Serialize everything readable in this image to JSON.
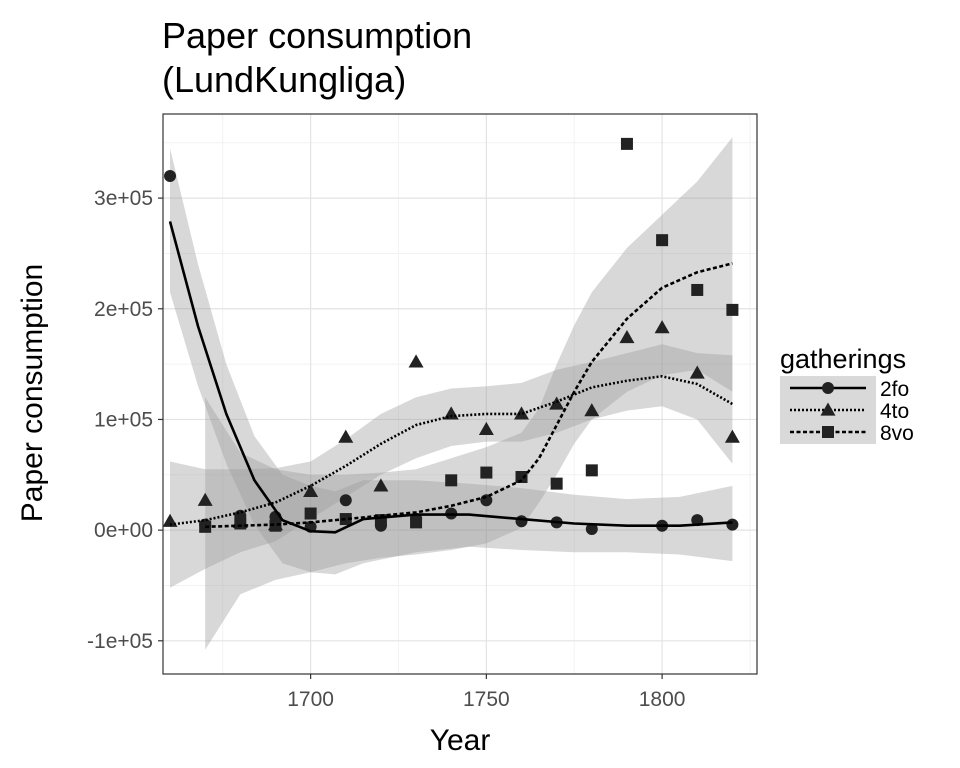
{
  "chart_data": {
    "type": "scatter",
    "title": [
      "Paper consumption",
      "(LundKungliga)"
    ],
    "xlabel": "Year",
    "ylabel": "Paper consumption",
    "xlim": [
      1658,
      1827
    ],
    "ylim": [
      -130000,
      376000
    ],
    "xticks": [
      1700,
      1750,
      1800
    ],
    "xtick_labels": [
      "1700",
      "1750",
      "1800"
    ],
    "xminor": [
      1675,
      1725,
      1775,
      1825
    ],
    "yticks": [
      -100000,
      0,
      100000,
      200000,
      300000
    ],
    "ytick_labels": [
      "-1e+05",
      "0e+00",
      "1e+05",
      "2e+05",
      "3e+05"
    ],
    "yminor": [
      -50000,
      50000,
      150000,
      250000,
      350000
    ],
    "grid": true,
    "legend": {
      "title": "gatherings",
      "position": "right",
      "entries": [
        "2fo",
        "4to",
        "8vo"
      ]
    },
    "series": [
      {
        "name": "2fo",
        "marker": "circle",
        "line": "solid",
        "x": [
          1660,
          1670,
          1680,
          1690,
          1700,
          1710,
          1720,
          1730,
          1740,
          1750,
          1760,
          1770,
          1780,
          1800,
          1810,
          1820
        ],
        "y": [
          320000,
          5000,
          13000,
          12000,
          3000,
          27000,
          4000,
          10000,
          15000,
          27000,
          8000,
          7000,
          1000,
          4000,
          9000,
          5000
        ],
        "smooth": {
          "x": [
            1660,
            1668,
            1676,
            1684,
            1692,
            1700,
            1707,
            1715,
            1730,
            1745,
            1760,
            1775,
            1790,
            1805,
            1820
          ],
          "y": [
            279000,
            184000,
            105000,
            45000,
            9000,
            -1000,
            -2000,
            10000,
            14000,
            14000,
            10000,
            6000,
            4000,
            4000,
            7000
          ]
        },
        "band": {
          "x": [
            1660,
            1668,
            1676,
            1684,
            1692,
            1700,
            1707,
            1715,
            1730,
            1745,
            1760,
            1775,
            1790,
            1805,
            1820
          ],
          "upper": [
            345000,
            240000,
            150000,
            85000,
            50000,
            40000,
            35000,
            45000,
            45000,
            42000,
            38000,
            32000,
            28000,
            30000,
            40000
          ],
          "lower": [
            215000,
            130000,
            60000,
            5000,
            -30000,
            -38000,
            -40000,
            -30000,
            -20000,
            -15000,
            -18000,
            -20000,
            -20000,
            -22000,
            -28000
          ]
        }
      },
      {
        "name": "4to",
        "marker": "triangle",
        "line": "dotted",
        "x": [
          1660,
          1670,
          1680,
          1690,
          1700,
          1710,
          1720,
          1730,
          1740,
          1750,
          1760,
          1770,
          1780,
          1790,
          1800,
          1810,
          1820
        ],
        "y": [
          8000,
          27000,
          7000,
          5000,
          35000,
          84000,
          40000,
          152000,
          105000,
          91000,
          105000,
          114000,
          108000,
          174000,
          183000,
          142000,
          84000
        ],
        "smooth": {
          "x": [
            1660,
            1670,
            1680,
            1690,
            1700,
            1710,
            1720,
            1730,
            1740,
            1750,
            1760,
            1770,
            1780,
            1790,
            1800,
            1810,
            1820
          ],
          "y": [
            5000,
            9000,
            16000,
            25000,
            40000,
            58000,
            78000,
            95000,
            103000,
            105000,
            105000,
            116000,
            129000,
            135000,
            139000,
            132000,
            114000
          ]
        },
        "band": {
          "x": [
            1660,
            1670,
            1680,
            1690,
            1700,
            1710,
            1720,
            1730,
            1740,
            1750,
            1760,
            1770,
            1780,
            1790,
            1800,
            1810,
            1820
          ],
          "upper": [
            62000,
            55000,
            55000,
            56000,
            62000,
            82000,
            105000,
            120000,
            128000,
            130000,
            133000,
            145000,
            152000,
            160000,
            168000,
            160000,
            158000
          ],
          "lower": [
            -52000,
            -35000,
            -20000,
            -10000,
            10000,
            30000,
            50000,
            65000,
            76000,
            80000,
            80000,
            88000,
            100000,
            108000,
            112000,
            100000,
            60000
          ]
        }
      },
      {
        "name": "8vo",
        "marker": "square",
        "line": "dashed",
        "x": [
          1670,
          1680,
          1690,
          1700,
          1710,
          1720,
          1730,
          1740,
          1750,
          1760,
          1770,
          1780,
          1790,
          1800,
          1810,
          1820
        ],
        "y": [
          3000,
          6000,
          4000,
          15000,
          10000,
          9000,
          7000,
          45000,
          52000,
          48000,
          42000,
          54000,
          349000,
          262000,
          217000,
          199000
        ],
        "smooth": {
          "x": [
            1670,
            1680,
            1690,
            1700,
            1710,
            1720,
            1730,
            1740,
            1750,
            1760,
            1765,
            1770,
            1775,
            1780,
            1790,
            1800,
            1810,
            1820
          ],
          "y": [
            3000,
            4000,
            5000,
            7000,
            10000,
            13000,
            16000,
            22000,
            30000,
            45000,
            65000,
            95000,
            125000,
            152000,
            191000,
            219000,
            233000,
            241000
          ]
        },
        "band": {
          "x": [
            1670,
            1680,
            1690,
            1700,
            1710,
            1720,
            1730,
            1740,
            1750,
            1760,
            1765,
            1770,
            1775,
            1780,
            1790,
            1800,
            1810,
            1820
          ],
          "upper": [
            120000,
            70000,
            55000,
            50000,
            50000,
            52000,
            55000,
            65000,
            75000,
            88000,
            110000,
            150000,
            185000,
            215000,
            255000,
            285000,
            315000,
            355000
          ],
          "lower": [
            -108000,
            -58000,
            -45000,
            -38000,
            -30000,
            -25000,
            -22000,
            -18000,
            -12000,
            2000,
            25000,
            50000,
            78000,
            100000,
            125000,
            140000,
            145000,
            125000
          ]
        }
      }
    ]
  }
}
